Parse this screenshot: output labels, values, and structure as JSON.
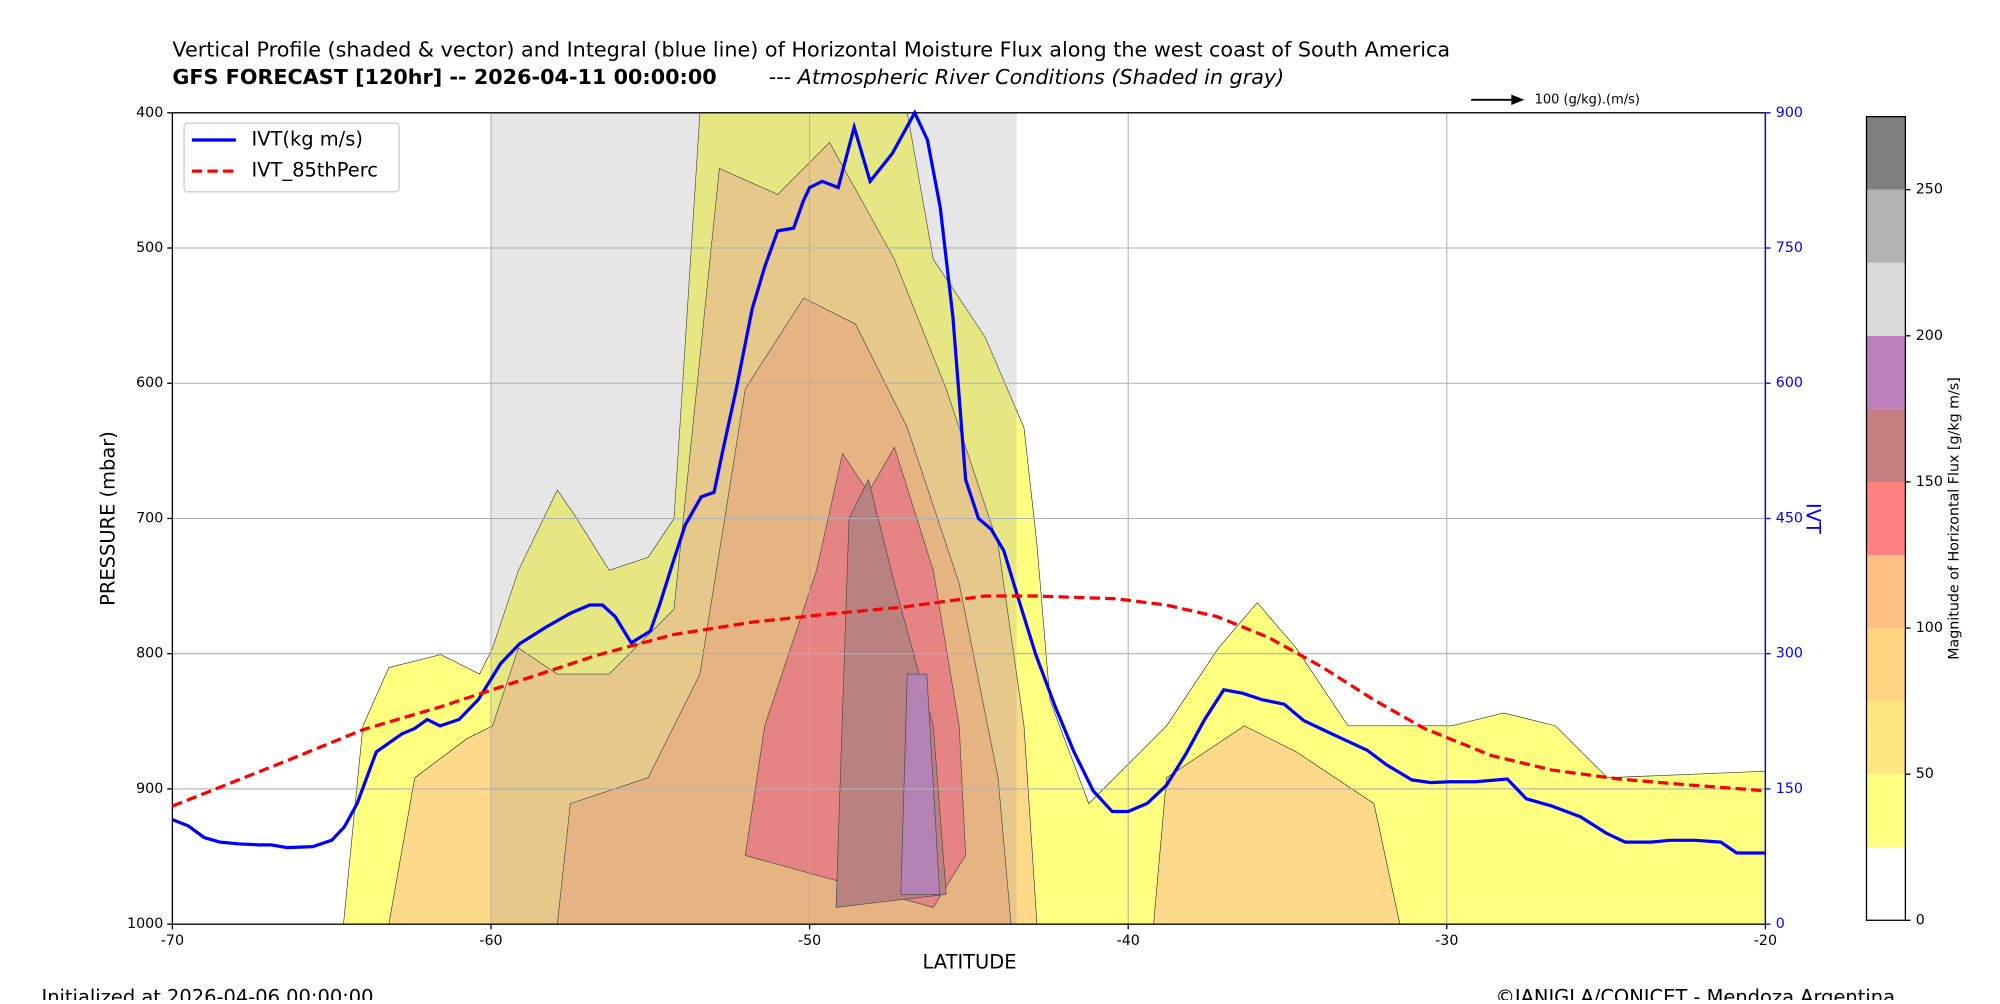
{
  "chart_data": {
    "type": "line",
    "title": "Vertical Profile (shaded & vector) and Integral (blue line) of Horizontal Moisture Flux along the west coast of South America",
    "subtitle": "GFS FORECAST [120hr] -- 2026-04-11 00:00:00",
    "subtitle_note": "--- Atmospheric River Conditions (Shaded in gray)",
    "xlabel": "LATITUDE",
    "ylabel": "PRESSURE (mbar)",
    "y2label": "IVT",
    "xlim": [
      -70,
      -20
    ],
    "xticks": [
      -70,
      -60,
      -50,
      -40,
      -30,
      -20
    ],
    "ylim": [
      1000,
      400
    ],
    "yticks": [
      400,
      500,
      600,
      700,
      800,
      900,
      1000
    ],
    "y2lim": [
      0,
      900
    ],
    "y2ticks": [
      0,
      150,
      300,
      450,
      600,
      750,
      900
    ],
    "grid": true,
    "legend": "upper left",
    "ar_shading": [
      -60,
      -43.5
    ],
    "vector_key": "100 (g/kg).(m/s)",
    "series": [
      {
        "name": "IVT(kg m/s)",
        "color": "#0000ff",
        "style": "solid",
        "axis": "y2",
        "x": [
          -70,
          -69.5,
          -69,
          -68.5,
          -67.9,
          -67.3,
          -66.9,
          -66.4,
          -65.6,
          -65,
          -64.6,
          -64.2,
          -63.6,
          -62.8,
          -62.4,
          -62,
          -61.6,
          -61,
          -60.4,
          -59.7,
          -59.1,
          -58.3,
          -57.5,
          -56.9,
          -56.5,
          -56.1,
          -55.6,
          -55,
          -54.7,
          -54.3,
          -53.9,
          -53.4,
          -53,
          -52.7,
          -52.3,
          -51.8,
          -51.4,
          -51,
          -50.5,
          -50.2,
          -50,
          -49.6,
          -49.1,
          -48.6,
          -48.1,
          -47.4,
          -46.7,
          -46.3,
          -45.9,
          -45.5,
          -45.1,
          -44.7,
          -44.3,
          -43.9,
          -43.5,
          -42.9,
          -42.3,
          -41.7,
          -41.1,
          -40.5,
          -40,
          -39.4,
          -38.8,
          -38.2,
          -37.6,
          -37,
          -36.4,
          -35.8,
          -35.1,
          -34.5,
          -33.9,
          -33.3,
          -32.5,
          -31.9,
          -31.1,
          -30.5,
          -29.9,
          -29.1,
          -28.1,
          -27.5,
          -26.7,
          -25.8,
          -25,
          -24.4,
          -23.6,
          -23,
          -22.2,
          -21.4,
          -20.9,
          -20
        ],
        "values": [
          116,
          109,
          96,
          91,
          89,
          88,
          88,
          85,
          86,
          93,
          108,
          134,
          191,
          211,
          217,
          227,
          220,
          227,
          249,
          289,
          311,
          329,
          345,
          354,
          354,
          341,
          312,
          325,
          355,
          400,
          443,
          474,
          479,
          529,
          594,
          683,
          730,
          769,
          772,
          802,
          817,
          824,
          817,
          884,
          824,
          855,
          900,
          870,
          795,
          673,
          493,
          450,
          438,
          414,
          367,
          299,
          242,
          191,
          148,
          125,
          125,
          134,
          154,
          188,
          227,
          260,
          256,
          249,
          244,
          226,
          216,
          206,
          193,
          177,
          160,
          157,
          158,
          158,
          161,
          139,
          131,
          119,
          101,
          91,
          91,
          93,
          93,
          91,
          79,
          79
        ]
      },
      {
        "name": "IVT_85thPerc",
        "color": "#ff0000",
        "style": "dashed",
        "axis": "y2",
        "x": [
          -70,
          -68.5,
          -66.5,
          -64,
          -61.6,
          -59.1,
          -56.7,
          -54.3,
          -51.8,
          -49.4,
          -47,
          -44.5,
          -42.9,
          -40.4,
          -38.8,
          -37.2,
          -35.6,
          -33.9,
          -32.3,
          -30.7,
          -28.6,
          -26.7,
          -24.6,
          -22.6,
          -20
        ],
        "values": [
          131,
          152,
          180,
          216,
          241,
          270,
          298,
          321,
          335,
          344,
          352,
          364,
          364,
          361,
          354,
          341,
          318,
          285,
          249,
          217,
          187,
          171,
          161,
          155,
          148
        ]
      }
    ],
    "colorbar": {
      "label": "Magnitude of Horizontal Flux [g/kg m/s]",
      "levels": [
        0,
        25,
        50,
        75,
        100,
        125,
        150,
        175,
        200,
        225,
        250,
        275
      ],
      "colors": [
        "#ffffff",
        "#ffff80",
        "#ffe680",
        "#ffd480",
        "#ffbf80",
        "#ff8080",
        "#c77e7e",
        "#bf80bf",
        "#d9d9d9",
        "#b3b3b3",
        "#808080"
      ],
      "ticks": [
        0,
        50,
        100,
        150,
        200,
        250
      ]
    },
    "footer_left": "Initialized at 2026-04-06 00:00:00",
    "footer_right": "©IANIGLA/CONICET - Mendoza Argentina"
  }
}
